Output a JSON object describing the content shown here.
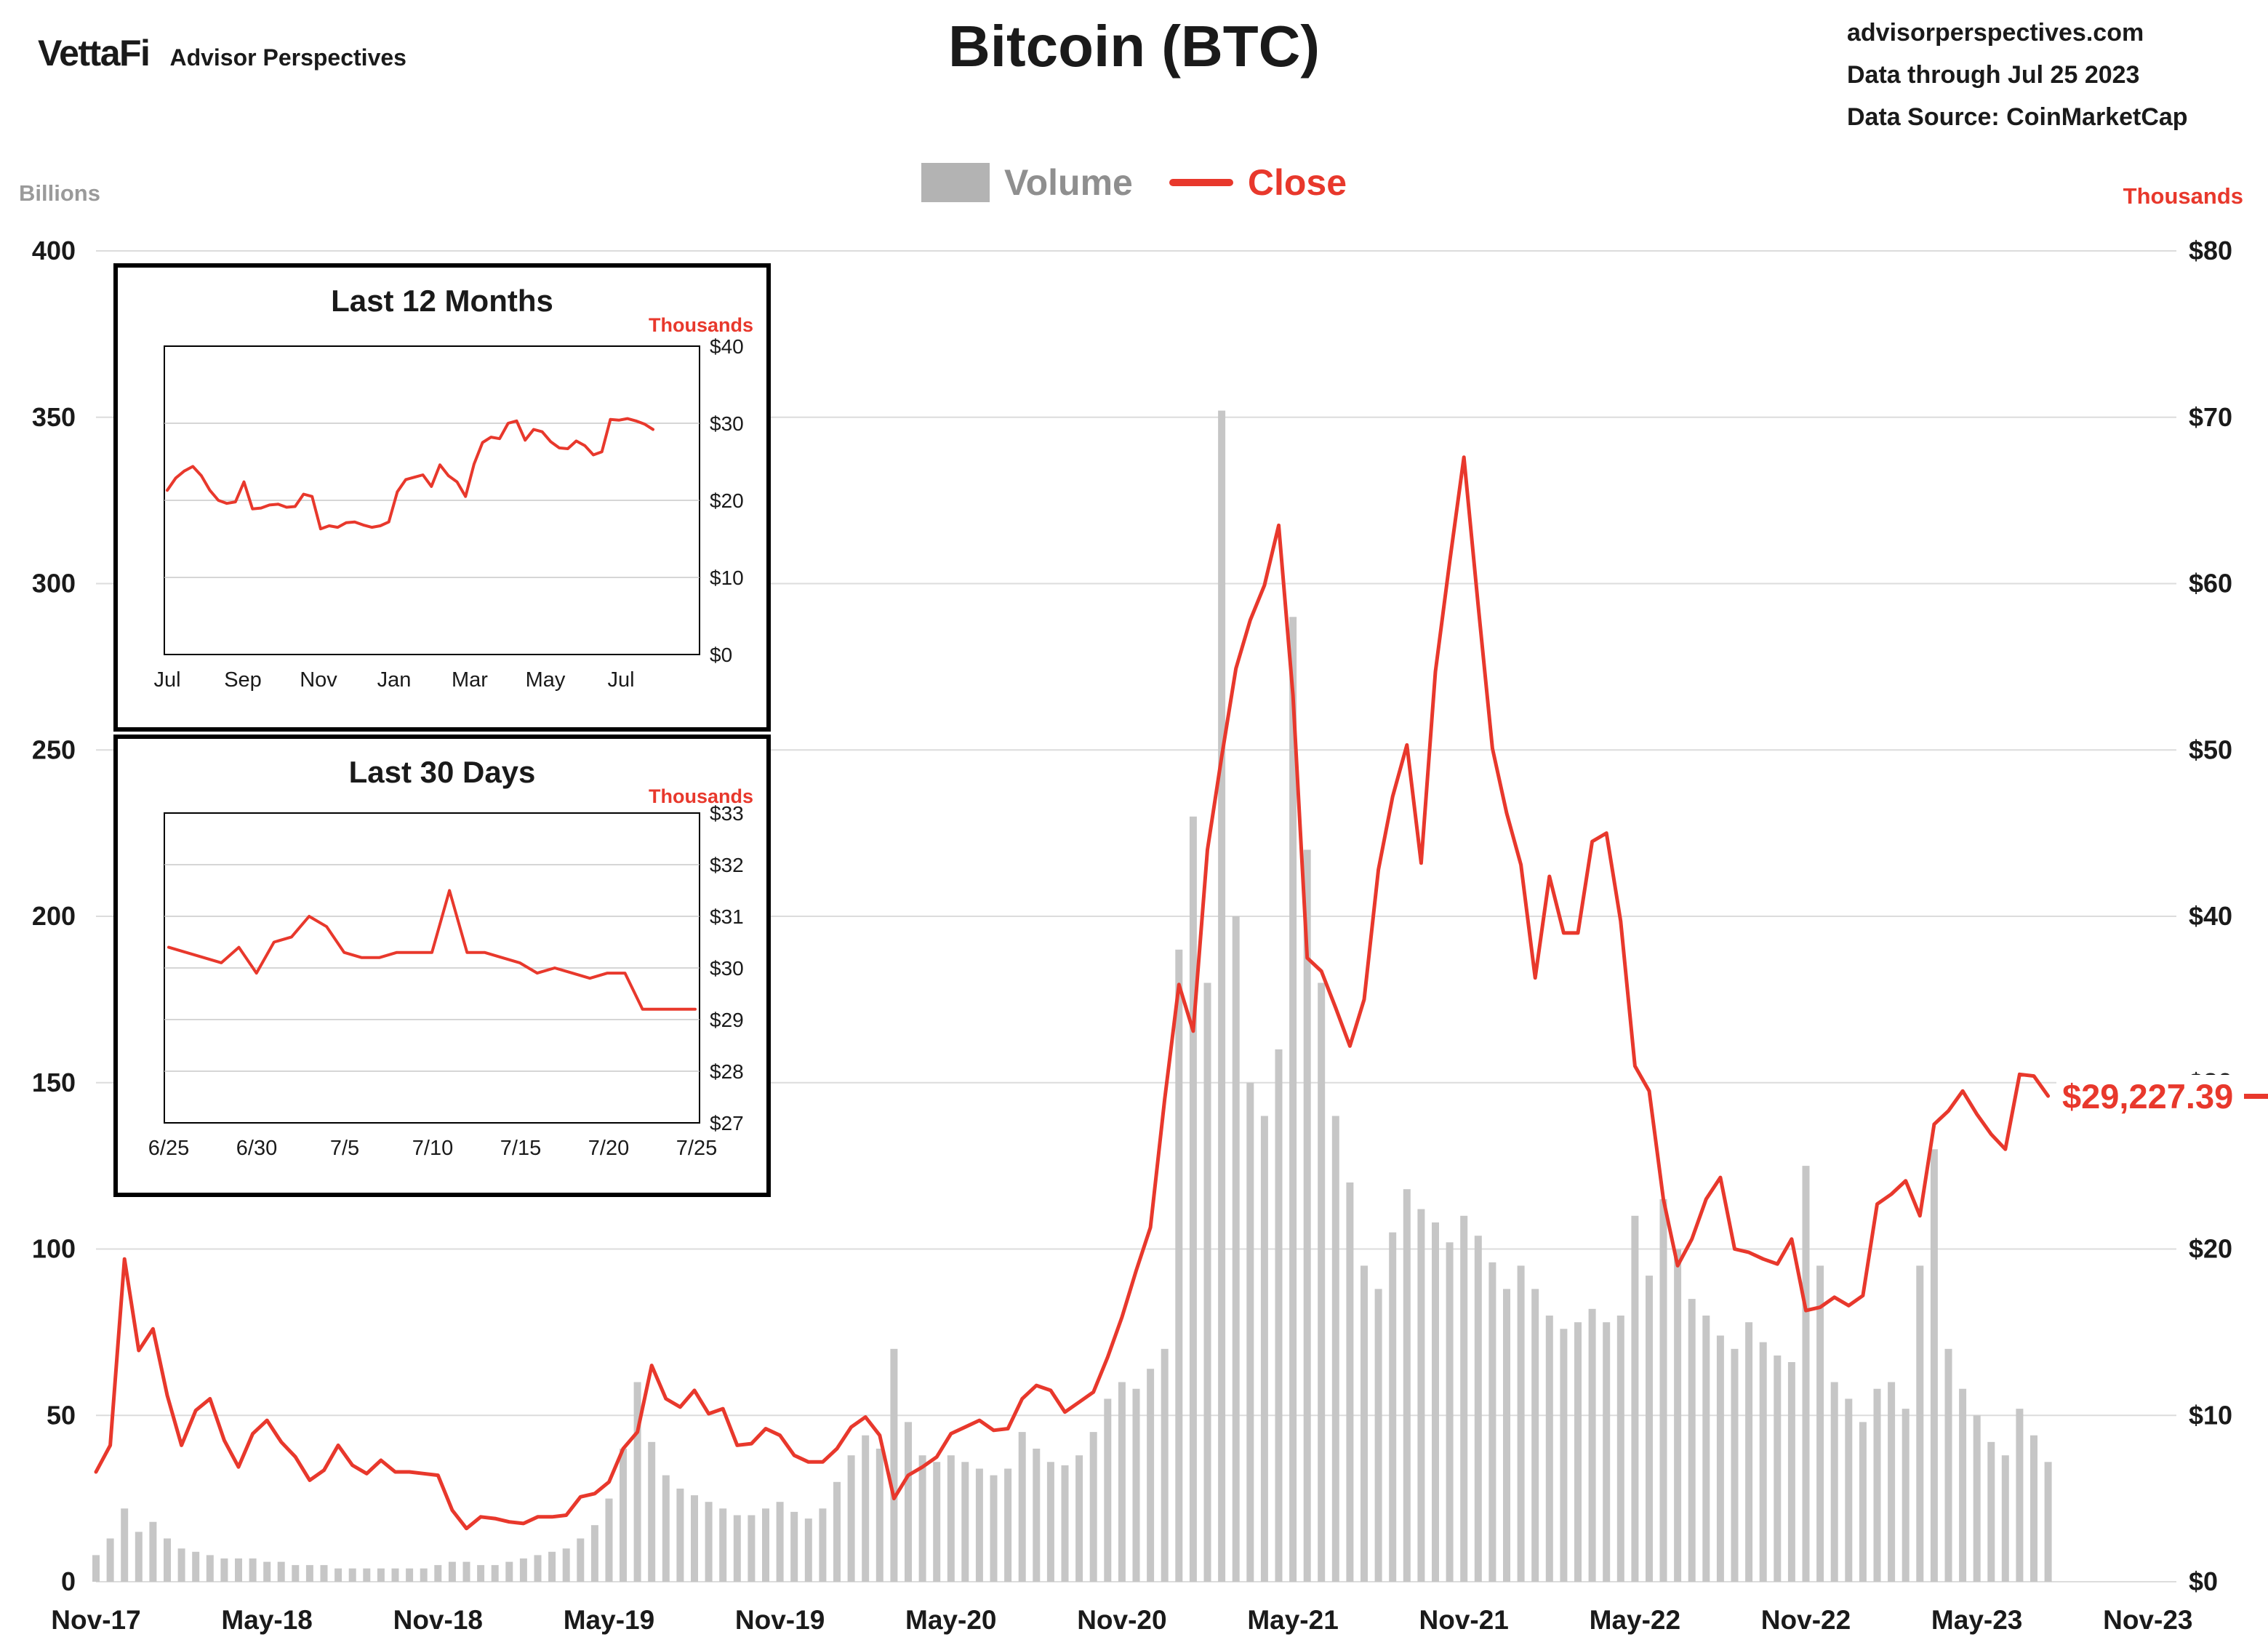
{
  "header": {
    "logo": "VettaFi",
    "logo_sub": "Advisor Perspectives",
    "title": "Bitcoin (BTC)",
    "source_lines": [
      "advisorperspectives.com",
      "Data through Jul 25 2023",
      "Data Source: CoinMarketCap"
    ]
  },
  "legend": {
    "volume_label": "Volume",
    "close_label": "Close"
  },
  "axes": {
    "left_unit": "Billions",
    "right_unit": "Thousands"
  },
  "colors": {
    "close_red": "#e8382c",
    "volume_gray": "#c6c6c6",
    "volume_swatch": "#b3b3b3",
    "legend_volume_text": "#8f8f8f",
    "grid_gray": "#dcdcdc",
    "axis_text": "#1a1a1a",
    "muted_label": "#9a9a9a"
  },
  "chart_data": [
    {
      "id": "main",
      "type": "line+bar",
      "title": "Bitcoin (BTC)",
      "legend": [
        "Volume",
        "Close"
      ],
      "legend_position": "top",
      "grid": true,
      "x_start": "Nov-2017",
      "x_step_months": 0.5,
      "x_tick_labels": [
        "Nov-17",
        "May-18",
        "Nov-18",
        "May-19",
        "Nov-19",
        "May-20",
        "Nov-20",
        "May-21",
        "Nov-21",
        "May-22",
        "Nov-22",
        "May-23",
        "Nov-23"
      ],
      "left_axis": {
        "label": "Billions",
        "min": 0,
        "max": 400,
        "tick_values": [
          0,
          50,
          100,
          150,
          200,
          250,
          300,
          350,
          400
        ],
        "tick_labels": [
          "0",
          "50",
          "100",
          "150",
          "200",
          "250",
          "300",
          "350",
          "400"
        ]
      },
      "right_axis": {
        "label": "Thousands",
        "min": 0,
        "max": 80,
        "tick_values": [
          0,
          10,
          20,
          30,
          40,
          50,
          60,
          70,
          80
        ],
        "tick_labels": [
          "$0",
          "$10",
          "$20",
          "$30",
          "$40",
          "$50",
          "$60",
          "$70",
          "$80"
        ]
      },
      "last_close_label": "$29,227.39",
      "series": [
        {
          "name": "Close",
          "unit": "thousands_usd",
          "values": [
            6.6,
            8.2,
            19.4,
            13.9,
            15.2,
            11.2,
            8.2,
            10.3,
            11.0,
            8.5,
            6.9,
            8.9,
            9.7,
            8.4,
            7.5,
            6.1,
            6.7,
            8.2,
            7.0,
            6.5,
            7.3,
            6.6,
            6.6,
            6.5,
            6.4,
            4.3,
            3.2,
            3.9,
            3.8,
            3.6,
            3.5,
            3.9,
            3.9,
            4.0,
            5.1,
            5.3,
            6.0,
            8.0,
            9.0,
            13.0,
            11.0,
            10.5,
            11.5,
            10.1,
            10.4,
            8.2,
            8.3,
            9.2,
            8.8,
            7.6,
            7.2,
            7.2,
            8.0,
            9.3,
            9.9,
            8.8,
            5.0,
            6.4,
            6.9,
            7.5,
            8.9,
            9.3,
            9.7,
            9.1,
            9.2,
            11.0,
            11.8,
            11.5,
            10.2,
            10.8,
            11.4,
            13.5,
            15.9,
            18.7,
            21.3,
            29.0,
            35.9,
            33.1,
            44.0,
            49.6,
            54.9,
            57.8,
            59.9,
            63.5,
            53.3,
            37.5,
            36.7,
            34.5,
            32.2,
            35.0,
            42.8,
            47.2,
            50.3,
            43.2,
            54.7,
            61.3,
            67.6,
            58.7,
            50.1,
            46.2,
            43.1,
            36.3,
            42.4,
            39.0,
            39.0,
            44.5,
            45.0,
            39.7,
            31.0,
            29.5,
            23.0,
            19.0,
            20.6,
            23.0,
            24.3,
            20.0,
            19.8,
            19.4,
            19.1,
            20.6,
            16.3,
            16.5,
            17.1,
            16.6,
            17.2,
            22.7,
            23.3,
            24.1,
            22.0,
            27.5,
            28.3,
            29.5,
            28.1,
            26.9,
            26.0,
            30.5,
            30.4,
            29.2
          ]
        },
        {
          "name": "Volume",
          "unit": "billions_usd",
          "values": [
            8,
            13,
            22,
            15,
            18,
            13,
            10,
            9,
            8,
            7,
            7,
            7,
            6,
            6,
            5,
            5,
            5,
            4,
            4,
            4,
            4,
            4,
            4,
            4,
            5,
            6,
            6,
            5,
            5,
            6,
            7,
            8,
            9,
            10,
            13,
            17,
            25,
            40,
            60,
            42,
            32,
            28,
            26,
            24,
            22,
            20,
            20,
            22,
            24,
            21,
            19,
            22,
            30,
            38,
            44,
            40,
            70,
            48,
            38,
            36,
            38,
            36,
            34,
            32,
            34,
            45,
            40,
            36,
            35,
            38,
            45,
            55,
            60,
            58,
            64,
            70,
            190,
            230,
            180,
            352,
            200,
            150,
            140,
            160,
            290,
            220,
            180,
            140,
            120,
            95,
            88,
            105,
            118,
            112,
            108,
            102,
            110,
            104,
            96,
            88,
            95,
            88,
            80,
            76,
            78,
            82,
            78,
            80,
            110,
            92,
            115,
            100,
            85,
            80,
            74,
            70,
            78,
            72,
            68,
            66,
            125,
            95,
            60,
            55,
            48,
            58,
            60,
            52,
            95,
            130,
            70,
            58,
            50,
            42,
            38,
            52,
            44,
            36
          ]
        }
      ]
    },
    {
      "id": "last12",
      "type": "line",
      "title": "Last 12 Months",
      "axis_label": "Thousands",
      "grid": true,
      "x_tick_labels": [
        "Jul",
        "Sep",
        "Nov",
        "Jan",
        "Mar",
        "May",
        "Jul"
      ],
      "y_min": 0,
      "y_max": 40,
      "y_tick_values": [
        0,
        10,
        20,
        30,
        40
      ],
      "y_tick_labels": [
        "$0",
        "$10",
        "$20",
        "$30",
        "$40"
      ],
      "values": [
        21.3,
        22.9,
        23.8,
        24.4,
        23.2,
        21.3,
        20.0,
        19.6,
        19.8,
        22.4,
        18.9,
        19.0,
        19.4,
        19.5,
        19.1,
        19.2,
        20.8,
        20.5,
        16.3,
        16.7,
        16.5,
        17.1,
        17.2,
        16.8,
        16.5,
        16.7,
        17.2,
        21.1,
        22.7,
        23.0,
        23.3,
        21.8,
        24.6,
        23.2,
        22.4,
        20.5,
        24.7,
        27.5,
        28.2,
        28.0,
        30.0,
        30.3,
        27.8,
        29.2,
        28.9,
        27.6,
        26.8,
        26.7,
        27.7,
        27.1,
        25.9,
        26.3,
        30.5,
        30.4,
        30.6,
        30.3,
        29.9,
        29.2
      ]
    },
    {
      "id": "last30",
      "type": "line",
      "title": "Last 30 Days",
      "axis_label": "Thousands",
      "grid": true,
      "x_tick_labels": [
        "6/25",
        "6/30",
        "7/5",
        "7/10",
        "7/15",
        "7/20",
        "7/25"
      ],
      "y_min": 27,
      "y_max": 33,
      "y_tick_values": [
        27,
        28,
        29,
        30,
        31,
        32,
        33
      ],
      "y_tick_labels": [
        "$27",
        "$28",
        "$29",
        "$30",
        "$31",
        "$32",
        "$33"
      ],
      "values": [
        30.4,
        30.3,
        30.2,
        30.1,
        30.4,
        29.9,
        30.5,
        30.6,
        31.0,
        30.8,
        30.3,
        30.2,
        30.2,
        30.3,
        30.3,
        30.3,
        31.5,
        30.3,
        30.3,
        30.2,
        30.1,
        29.9,
        30.0,
        29.9,
        29.8,
        29.9,
        29.9,
        29.2,
        29.2,
        29.2,
        29.2
      ]
    }
  ]
}
